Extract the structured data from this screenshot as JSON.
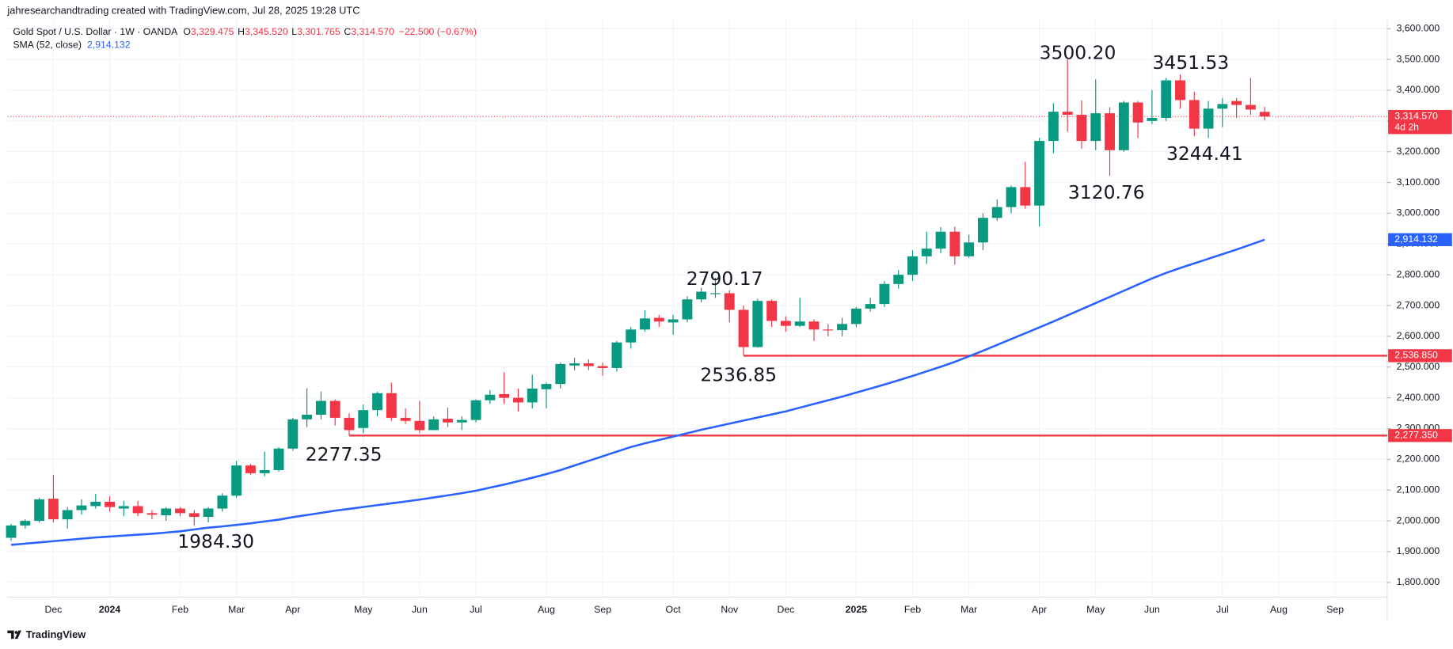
{
  "header": "jahresearchandtrading created with TradingView.com, Jul 28, 2025 19:28 UTC",
  "legend": {
    "symbol": "Gold Spot / U.S. Dollar · 1W · OANDA",
    "fields": [
      {
        "key": "O",
        "value": "3,329.475"
      },
      {
        "key": "H",
        "value": "3,345.520"
      },
      {
        "key": "L",
        "value": "3,301.765"
      },
      {
        "key": "C",
        "value": "3,314.570"
      }
    ],
    "change": "−22.500 (−0.67%)"
  },
  "footer": "TradingView",
  "chart_data": {
    "type": "candlestick",
    "categories": [
      null,
      null,
      null,
      "Dec",
      null,
      null,
      null,
      "2024",
      null,
      null,
      null,
      null,
      "Feb",
      null,
      null,
      null,
      "Mar",
      null,
      null,
      null,
      "Apr",
      null,
      null,
      null,
      null,
      "May",
      null,
      null,
      null,
      "Jun",
      null,
      null,
      null,
      "Jul",
      null,
      null,
      null,
      null,
      "Aug",
      null,
      null,
      null,
      "Sep",
      null,
      null,
      null,
      null,
      "Oct",
      null,
      null,
      null,
      "Nov",
      null,
      null,
      null,
      "Dec",
      null,
      null,
      null,
      null,
      "2025",
      null,
      null,
      null,
      "Feb",
      null,
      null,
      null,
      "Mar",
      null,
      null,
      null,
      null,
      "Apr",
      null,
      null,
      null,
      "May",
      null,
      null,
      null,
      "Jun",
      null,
      null,
      null,
      null,
      "Jul",
      null,
      null,
      null,
      "Aug",
      null,
      null,
      null,
      "Sep",
      null,
      null,
      null
    ],
    "open": [
      1945,
      1985,
      2000,
      2072,
      2005,
      2035,
      2048,
      2062,
      2040,
      2048,
      2025,
      2018,
      2040,
      2025,
      2013,
      2040,
      2082,
      2180,
      2155,
      2165,
      2235,
      2330,
      2345,
      2390,
      2335,
      2302,
      2360,
      2415,
      2335,
      2325,
      2295,
      2332,
      2320,
      2328,
      2392,
      2412,
      2400,
      2385,
      2428,
      2445,
      2505,
      2512,
      2503,
      2497,
      2580,
      2622,
      2660,
      2645,
      2655,
      2720,
      2738,
      2740,
      2686,
      2565,
      2715,
      2650,
      2634,
      2648,
      2622,
      2620,
      2640,
      2690,
      2705,
      2770,
      2800,
      2860,
      2885,
      2940,
      2860,
      2905,
      2985,
      3020,
      3085,
      3025,
      3235,
      3330,
      3320,
      3235,
      3325,
      3205,
      3360,
      3300,
      3310,
      3432,
      3368,
      3275,
      3340,
      3365,
      3352,
      3329.475,
      null,
      null,
      null,
      null,
      null,
      null,
      null,
      null
    ],
    "high": [
      1990,
      2005,
      2075,
      2150,
      2045,
      2070,
      2088,
      2080,
      2065,
      2065,
      2035,
      2045,
      2045,
      2035,
      2045,
      2090,
      2195,
      2185,
      2225,
      2240,
      2335,
      2431,
      2420,
      2395,
      2350,
      2378,
      2420,
      2450,
      2365,
      2390,
      2340,
      2368,
      2340,
      2395,
      2425,
      2483,
      2430,
      2475,
      2450,
      2515,
      2530,
      2525,
      2515,
      2585,
      2630,
      2685,
      2670,
      2670,
      2730,
      2758,
      2790.17,
      2750,
      2700,
      2722,
      2720,
      2665,
      2725,
      2655,
      2640,
      2660,
      2695,
      2725,
      2780,
      2815,
      2880,
      2940,
      2955,
      2956,
      2930,
      3000,
      3045,
      3090,
      3167,
      3245,
      3358,
      3500.2,
      3367,
      3435,
      3345,
      3365,
      3365,
      3400,
      3440,
      3451.53,
      3395,
      3365,
      3375,
      3375,
      3440,
      3345.52,
      null,
      null,
      null,
      null,
      null,
      null,
      null,
      null
    ],
    "low": [
      1935,
      1975,
      1995,
      1995,
      1975,
      2020,
      2040,
      2030,
      2015,
      2015,
      2005,
      2000,
      2015,
      1984.3,
      1995,
      2030,
      2075,
      2150,
      2145,
      2160,
      2228,
      2305,
      2330,
      2310,
      2277.35,
      2285,
      2340,
      2325,
      2315,
      2285,
      2295,
      2305,
      2295,
      2320,
      2380,
      2380,
      2355,
      2365,
      2365,
      2430,
      2490,
      2490,
      2472,
      2485,
      2560,
      2615,
      2630,
      2605,
      2645,
      2710,
      2725,
      2645,
      2536.85,
      2563,
      2630,
      2615,
      2630,
      2585,
      2600,
      2600,
      2630,
      2680,
      2695,
      2755,
      2780,
      2835,
      2870,
      2833,
      2855,
      2880,
      2975,
      3000,
      3015,
      2957,
      3195,
      3265,
      3210,
      3205,
      3120.76,
      3200,
      3245,
      3290,
      3300,
      3340,
      3250,
      3244.41,
      3280,
      3310,
      3320,
      3301.765,
      null,
      null,
      null,
      null,
      null,
      null,
      null,
      null
    ],
    "close": [
      1985,
      2000,
      2070,
      2005,
      2035,
      2050,
      2062,
      2045,
      2048,
      2025,
      2020,
      2040,
      2025,
      2013,
      2040,
      2082,
      2180,
      2155,
      2165,
      2235,
      2330,
      2345,
      2390,
      2335,
      2295,
      2360,
      2415,
      2335,
      2325,
      2295,
      2330,
      2320,
      2328,
      2392,
      2410,
      2400,
      2385,
      2430,
      2445,
      2510,
      2512,
      2503,
      2497,
      2580,
      2622,
      2658,
      2648,
      2655,
      2720,
      2745,
      2740,
      2686,
      2565,
      2715,
      2650,
      2634,
      2648,
      2622,
      2620,
      2640,
      2690,
      2705,
      2770,
      2800,
      2860,
      2885,
      2940,
      2860,
      2905,
      2985,
      3020,
      3085,
      3025,
      3235,
      3330,
      3320,
      3235,
      3325,
      3205,
      3360,
      3295,
      3310,
      3432,
      3368,
      3275,
      3340,
      3355,
      3352,
      3337,
      3314.57,
      null,
      null,
      null,
      null,
      null,
      null,
      null,
      null
    ],
    "up_color": "#089981",
    "down_color": "#f23645",
    "sma": {
      "name": "SMA (52, close)",
      "color": "#2962ff",
      "last_label": "2,914.132",
      "values": [
        1922,
        1926,
        1930,
        1934,
        1938,
        1942,
        1946,
        1949,
        1952,
        1955,
        1958,
        1962,
        1966,
        1972,
        1978,
        1982,
        1987,
        1992,
        1998,
        2004,
        2012,
        2019,
        2026,
        2033,
        2039,
        2045,
        2051,
        2057,
        2063,
        2069,
        2076,
        2083,
        2090,
        2098,
        2108,
        2118,
        2129,
        2140,
        2152,
        2165,
        2180,
        2195,
        2210,
        2225,
        2240,
        2252,
        2263,
        2274,
        2285,
        2296,
        2306,
        2316,
        2326,
        2336,
        2346,
        2356,
        2368,
        2380,
        2392,
        2404,
        2417,
        2430,
        2443,
        2457,
        2471,
        2486,
        2501,
        2517,
        2535,
        2553,
        2572,
        2591,
        2610,
        2629,
        2648,
        2668,
        2688,
        2708,
        2728,
        2748,
        2768,
        2788,
        2806,
        2822,
        2837,
        2852,
        2867,
        2882,
        2898,
        2914.132,
        null,
        null,
        null,
        null,
        null,
        null,
        null,
        null
      ]
    },
    "last_price": {
      "value": 3314.57,
      "label": "3,314.570",
      "countdown": "4d 2h",
      "color": "#f23645"
    },
    "hlines": [
      {
        "value": 2536.85,
        "label": "2,536.850"
      },
      {
        "value": 2277.35,
        "label": "2,277.350"
      }
    ],
    "hline_color": "#f23645",
    "annotations": [
      "3500.20",
      "3451.53",
      "3244.41",
      "3120.76",
      "2790.17",
      "2536.85",
      "2277.35",
      "1984.30"
    ],
    "ylim": [
      1752,
      3627
    ],
    "yticks": [
      {
        "value": 1800,
        "label": "1,800.000"
      },
      {
        "value": 1900,
        "label": "1,900.000"
      },
      {
        "value": 2000,
        "label": "2,000.000"
      },
      {
        "value": 2100,
        "label": "2,100.000"
      },
      {
        "value": 2200,
        "label": "2,200.000"
      },
      {
        "value": 2300,
        "label": "2,300.000"
      },
      {
        "value": 2400,
        "label": "2,400.000"
      },
      {
        "value": 2500,
        "label": "2,500.000"
      },
      {
        "value": 2600,
        "label": "2,600.000"
      },
      {
        "value": 2700,
        "label": "2,700.000"
      },
      {
        "value": 2800,
        "label": "2,800.000"
      },
      {
        "value": 2900,
        "label": "2,900.000"
      },
      {
        "value": 3000,
        "label": "3,000.000"
      },
      {
        "value": 3100,
        "label": "3,100.000"
      },
      {
        "value": 3200,
        "label": "3,200.000"
      },
      {
        "value": 3300,
        "label": "3,300.000"
      },
      {
        "value": 3400,
        "label": "3,400.000"
      },
      {
        "value": 3500,
        "label": "3,500.000"
      },
      {
        "value": 3600,
        "label": "3,600.000"
      }
    ],
    "grid": true
  }
}
